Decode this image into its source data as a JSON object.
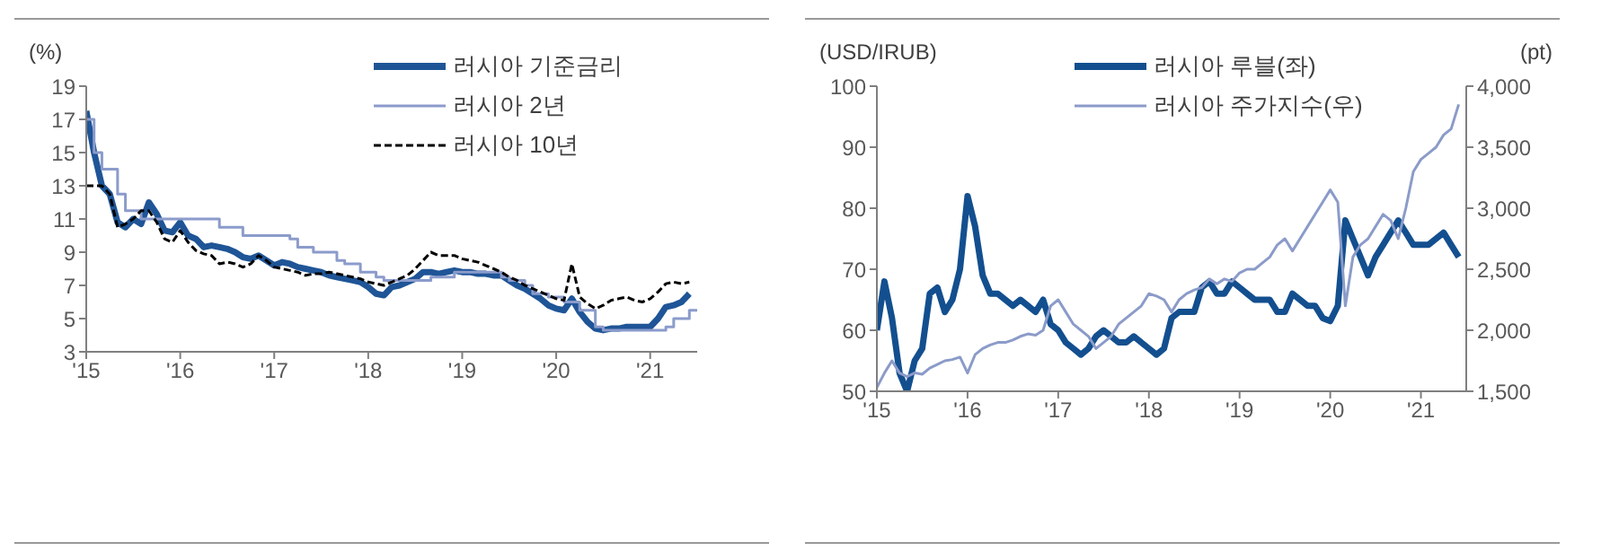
{
  "chart_data": [
    {
      "type": "line",
      "ylabel": "(%)",
      "legend": "top right",
      "x": [
        "2015-01",
        "2015-02",
        "2015-03",
        "2015-04",
        "2015-05",
        "2015-06",
        "2015-07",
        "2015-08",
        "2015-09",
        "2015-10",
        "2015-11",
        "2015-12",
        "2016-01",
        "2016-02",
        "2016-03",
        "2016-04",
        "2016-05",
        "2016-06",
        "2016-07",
        "2016-08",
        "2016-09",
        "2016-10",
        "2016-11",
        "2016-12",
        "2017-01",
        "2017-02",
        "2017-03",
        "2017-04",
        "2017-05",
        "2017-06",
        "2017-07",
        "2017-08",
        "2017-09",
        "2017-10",
        "2017-11",
        "2017-12",
        "2018-01",
        "2018-02",
        "2018-03",
        "2018-04",
        "2018-05",
        "2018-06",
        "2018-07",
        "2018-08",
        "2018-09",
        "2018-10",
        "2018-11",
        "2018-12",
        "2019-01",
        "2019-02",
        "2019-03",
        "2019-04",
        "2019-05",
        "2019-06",
        "2019-07",
        "2019-08",
        "2019-09",
        "2019-10",
        "2019-11",
        "2019-12",
        "2020-01",
        "2020-02",
        "2020-03",
        "2020-04",
        "2020-05",
        "2020-06",
        "2020-07",
        "2020-08",
        "2020-09",
        "2020-10",
        "2020-11",
        "2020-12",
        "2021-01",
        "2021-02",
        "2021-03",
        "2021-04",
        "2021-05",
        "2021-06"
      ],
      "series": [
        {
          "name": "러시아 기준금리",
          "color": "#1f5597",
          "values": [
            17.5,
            15,
            13,
            12.5,
            10.8,
            10.5,
            11,
            10.7,
            12,
            11.3,
            10.3,
            10.2,
            10.8,
            10,
            9.8,
            9.3,
            9.4,
            9.3,
            9.2,
            9,
            8.7,
            8.6,
            8.8,
            8.5,
            8.2,
            8.4,
            8.3,
            8.1,
            8,
            7.9,
            7.8,
            7.6,
            7.5,
            7.4,
            7.3,
            7.2,
            6.9,
            6.5,
            6.4,
            6.9,
            7,
            7.2,
            7.4,
            7.8,
            7.8,
            7.7,
            7.8,
            7.9,
            7.8,
            7.8,
            7.7,
            7.7,
            7.6,
            7.6,
            7.3,
            7,
            6.8,
            6.5,
            6.2,
            5.8,
            5.6,
            5.5,
            6.2,
            5.4,
            4.8,
            4.4,
            4.3,
            4.4,
            4.4,
            4.5,
            4.5,
            4.5,
            4.5,
            5,
            5.7,
            5.8,
            6,
            6.5
          ]
        },
        {
          "name": "러시아 2년",
          "color": "#8b9bcb",
          "type": "step",
          "x": [
            "2015-01",
            "2015-02",
            "2015-03",
            "2015-05",
            "2015-06",
            "2015-08",
            "2016-06",
            "2016-09",
            "2017-03",
            "2017-04",
            "2017-06",
            "2017-09",
            "2017-10",
            "2017-12",
            "2018-02",
            "2018-03",
            "2018-09",
            "2018-12",
            "2019-06",
            "2019-07",
            "2019-09",
            "2019-10",
            "2019-12",
            "2020-02",
            "2020-04",
            "2020-06",
            "2020-07",
            "2021-03",
            "2021-04",
            "2021-06",
            "2021-07"
          ],
          "values": [
            17,
            15,
            14,
            12.5,
            11.5,
            11,
            10.5,
            10,
            9.8,
            9.3,
            9,
            8.5,
            8.3,
            7.8,
            7.5,
            7.3,
            7.5,
            7.8,
            7.5,
            7.3,
            7,
            6.5,
            6.3,
            6,
            5.5,
            4.5,
            4.3,
            4.5,
            5,
            5.5,
            5.5
          ]
        },
        {
          "name": "러시아 10년",
          "color": "#000000",
          "line_style": "dashed",
          "values": [
            13,
            13,
            13,
            12.5,
            10.5,
            10.7,
            11,
            11.5,
            11.5,
            10.8,
            9.8,
            9.6,
            10.3,
            9.6,
            9.1,
            8.9,
            8.8,
            8.3,
            8.4,
            8.3,
            8.1,
            8.3,
            8.8,
            8.5,
            8.1,
            8,
            7.9,
            7.8,
            7.6,
            7.7,
            7.7,
            7.8,
            7.7,
            7.6,
            7.5,
            7.4,
            7.2,
            7.1,
            7,
            7.2,
            7.4,
            7.6,
            8,
            8.5,
            9,
            8.8,
            8.8,
            8.8,
            8.6,
            8.5,
            8.4,
            8.2,
            8,
            7.8,
            7.5,
            7.3,
            7,
            6.8,
            6.6,
            6.4,
            6.2,
            6.1,
            8.3,
            6.3,
            5.9,
            5.6,
            5.8,
            6.1,
            6.2,
            6.3,
            6.1,
            6,
            6.2,
            6.6,
            7.1,
            7.2,
            7.1,
            7.2
          ]
        }
      ],
      "xlim": [
        "2015-01",
        "2021-07"
      ],
      "xticks": [
        {
          "value": "2015-01",
          "label": "'15"
        },
        {
          "value": "2016-01",
          "label": "'16"
        },
        {
          "value": "2017-01",
          "label": "'17"
        },
        {
          "value": "2018-01",
          "label": "'18"
        },
        {
          "value": "2019-01",
          "label": "'19"
        },
        {
          "value": "2020-01",
          "label": "'20"
        },
        {
          "value": "2021-01",
          "label": "'21"
        }
      ],
      "ylim": [
        3,
        19
      ],
      "yticks": [
        3,
        5,
        7,
        9,
        11,
        13,
        15,
        17,
        19
      ],
      "grid": false
    },
    {
      "type": "line",
      "ylabel": "(USD/IRUB)",
      "y2label": "(pt)",
      "legend": "top",
      "x": [
        "2015-01",
        "2015-02",
        "2015-03",
        "2015-04",
        "2015-05",
        "2015-06",
        "2015-07",
        "2015-08",
        "2015-09",
        "2015-10",
        "2015-11",
        "2015-12",
        "2016-01",
        "2016-02",
        "2016-03",
        "2016-04",
        "2016-05",
        "2016-06",
        "2016-07",
        "2016-08",
        "2016-09",
        "2016-10",
        "2016-11",
        "2016-12",
        "2017-01",
        "2017-02",
        "2017-03",
        "2017-04",
        "2017-05",
        "2017-06",
        "2017-07",
        "2017-08",
        "2017-09",
        "2017-10",
        "2017-11",
        "2017-12",
        "2018-01",
        "2018-02",
        "2018-03",
        "2018-04",
        "2018-05",
        "2018-06",
        "2018-07",
        "2018-08",
        "2018-09",
        "2018-10",
        "2018-11",
        "2018-12",
        "2019-01",
        "2019-02",
        "2019-03",
        "2019-04",
        "2019-05",
        "2019-06",
        "2019-07",
        "2019-08",
        "2019-09",
        "2019-10",
        "2019-11",
        "2019-12",
        "2020-01",
        "2020-02",
        "2020-03",
        "2020-04",
        "2020-05",
        "2020-06",
        "2020-07",
        "2020-08",
        "2020-09",
        "2020-10",
        "2020-11",
        "2020-12",
        "2021-01",
        "2021-02",
        "2021-03",
        "2021-04",
        "2021-05",
        "2021-06"
      ],
      "series": [
        {
          "name": "러시아 루블(좌)",
          "color": "#134f8f",
          "values": [
            60,
            68,
            62,
            53,
            50,
            55,
            57,
            66,
            67,
            63,
            65,
            70,
            82,
            77,
            69,
            66,
            66,
            65,
            64,
            65,
            64,
            63,
            65,
            61,
            60,
            58,
            57,
            56,
            57,
            59,
            60,
            59,
            58,
            58,
            59,
            58,
            57,
            56,
            57,
            62,
            63,
            63,
            63,
            67,
            68,
            66,
            66,
            68,
            67,
            66,
            65,
            65,
            65,
            63,
            63,
            66,
            65,
            64,
            64,
            62,
            61.5,
            64,
            78,
            75,
            72,
            69,
            72,
            74,
            76,
            78,
            76,
            74,
            74,
            74,
            75,
            76,
            74,
            72
          ]
        },
        {
          "name": "러시아 주가지수(우)",
          "color": "#8b9bc9",
          "axis": "y2",
          "values": [
            1530,
            1650,
            1750,
            1650,
            1620,
            1650,
            1640,
            1690,
            1720,
            1750,
            1760,
            1780,
            1650,
            1800,
            1850,
            1880,
            1900,
            1900,
            1920,
            1950,
            1970,
            1960,
            2000,
            2200,
            2250,
            2150,
            2050,
            2000,
            1950,
            1850,
            1900,
            1950,
            2050,
            2100,
            2150,
            2200,
            2300,
            2280,
            2250,
            2150,
            2250,
            2300,
            2330,
            2350,
            2420,
            2380,
            2420,
            2400,
            2470,
            2500,
            2500,
            2550,
            2600,
            2700,
            2750,
            2650,
            2750,
            2850,
            2950,
            3050,
            3150,
            3050,
            2200,
            2600,
            2700,
            2750,
            2850,
            2950,
            2900,
            2750,
            3000,
            3300,
            3400,
            3450,
            3500,
            3600,
            3650,
            3850
          ]
        }
      ],
      "xlim": [
        "2015-01",
        "2021-07"
      ],
      "xticks": [
        {
          "value": "2015-01",
          "label": "'15"
        },
        {
          "value": "2016-01",
          "label": "'16"
        },
        {
          "value": "2017-01",
          "label": "'17"
        },
        {
          "value": "2018-01",
          "label": "'18"
        },
        {
          "value": "2019-01",
          "label": "'19"
        },
        {
          "value": "2020-01",
          "label": "'20"
        },
        {
          "value": "2021-01",
          "label": "'21"
        }
      ],
      "ylim": [
        50,
        100
      ],
      "yticks": [
        50,
        60,
        70,
        80,
        90,
        100
      ],
      "y2lim": [
        1500,
        4000
      ],
      "y2ticks": [
        {
          "value": 1500,
          "label": "1,500"
        },
        {
          "value": 2000,
          "label": "2,000"
        },
        {
          "value": 2500,
          "label": "2,500"
        },
        {
          "value": 3000,
          "label": "3,000"
        },
        {
          "value": 3500,
          "label": "3,500"
        },
        {
          "value": 4000,
          "label": "4,000"
        }
      ],
      "grid": false
    }
  ]
}
